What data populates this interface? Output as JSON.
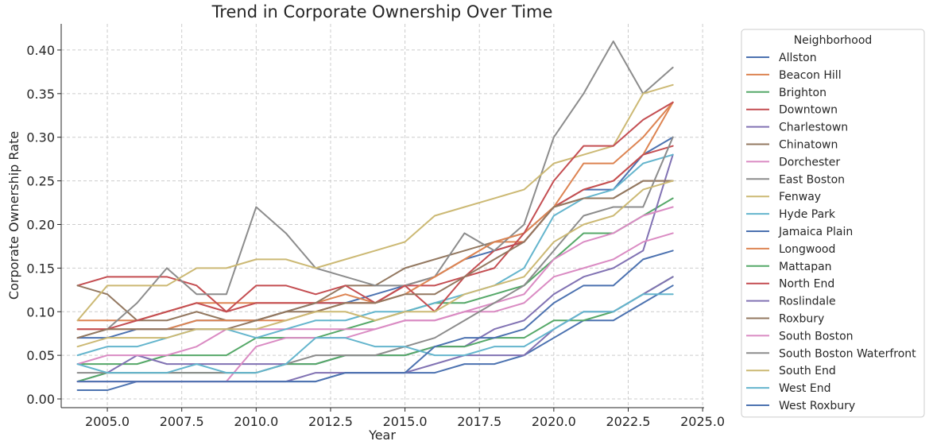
{
  "chart_data": {
    "type": "line",
    "title": "Trend in Corporate Ownership Over Time",
    "xlabel": "Year",
    "ylabel": "Corporate Ownership Rate",
    "xlim": [
      2003.45,
      2025.05
    ],
    "ylim": [
      -0.01,
      0.43
    ],
    "x_ticks": [
      2005.0,
      2007.5,
      2010.0,
      2012.5,
      2015.0,
      2017.5,
      2020.0,
      2022.5,
      2025.0
    ],
    "x_tick_labels": [
      "2005.0",
      "2007.5",
      "2010.0",
      "2012.5",
      "2015.0",
      "2017.5",
      "2020.0",
      "2022.5",
      "2025.0"
    ],
    "y_ticks": [
      0.0,
      0.05,
      0.1,
      0.15,
      0.2,
      0.25,
      0.3,
      0.35,
      0.4
    ],
    "y_tick_labels": [
      "0.00",
      "0.05",
      "0.10",
      "0.15",
      "0.20",
      "0.25",
      "0.30",
      "0.35",
      "0.40"
    ],
    "grid": true,
    "legend": {
      "title": "Neighborhood",
      "placement": "outside-right"
    },
    "x": [
      2004,
      2005,
      2006,
      2007,
      2008,
      2009,
      2010,
      2011,
      2012,
      2013,
      2014,
      2015,
      2016,
      2017,
      2018,
      2019,
      2020,
      2021,
      2022,
      2023,
      2024
    ],
    "series": [
      {
        "name": "Allston",
        "color": "#4c72b0",
        "values": [
          0.07,
          0.07,
          0.08,
          0.08,
          0.09,
          0.09,
          0.09,
          0.1,
          0.11,
          0.11,
          0.12,
          0.13,
          0.14,
          0.16,
          0.17,
          0.18,
          0.22,
          0.24,
          0.24,
          0.28,
          0.3
        ]
      },
      {
        "name": "Beacon Hill",
        "color": "#dd8452",
        "values": [
          0.09,
          0.09,
          0.09,
          0.1,
          0.11,
          0.11,
          0.11,
          0.11,
          0.11,
          0.12,
          0.11,
          0.13,
          0.14,
          0.16,
          0.18,
          0.18,
          0.22,
          0.24,
          0.25,
          0.28,
          0.34
        ]
      },
      {
        "name": "Brighton",
        "color": "#55a868",
        "values": [
          0.04,
          0.04,
          0.04,
          0.05,
          0.05,
          0.05,
          0.07,
          0.07,
          0.07,
          0.08,
          0.09,
          0.1,
          0.11,
          0.11,
          0.12,
          0.13,
          0.16,
          0.19,
          0.19,
          0.21,
          0.23
        ]
      },
      {
        "name": "Downtown",
        "color": "#c44e52",
        "values": [
          0.13,
          0.14,
          0.14,
          0.14,
          0.13,
          0.1,
          0.11,
          0.11,
          0.11,
          0.11,
          0.11,
          0.13,
          0.13,
          0.14,
          0.17,
          0.18,
          0.22,
          0.24,
          0.25,
          0.28,
          0.29
        ]
      },
      {
        "name": "Charlestown",
        "color": "#8172b3",
        "values": [
          0.02,
          0.03,
          0.05,
          0.04,
          0.04,
          0.04,
          0.04,
          0.04,
          0.04,
          0.05,
          0.05,
          0.05,
          0.06,
          0.06,
          0.08,
          0.09,
          0.12,
          0.14,
          0.15,
          0.17,
          0.28
        ]
      },
      {
        "name": "Chinatown",
        "color": "#937860",
        "values": [
          0.13,
          0.12,
          0.09,
          0.09,
          0.1,
          0.09,
          0.09,
          0.1,
          0.11,
          0.13,
          0.13,
          0.15,
          0.16,
          0.17,
          0.18,
          0.19,
          0.22,
          0.23,
          0.23,
          0.25,
          0.25
        ]
      },
      {
        "name": "Dorchester",
        "color": "#da8bc3",
        "values": [
          0.04,
          0.05,
          0.05,
          0.05,
          0.06,
          0.08,
          0.08,
          0.08,
          0.08,
          0.08,
          0.08,
          0.09,
          0.09,
          0.1,
          0.11,
          0.12,
          0.16,
          0.18,
          0.19,
          0.21,
          0.22
        ]
      },
      {
        "name": "East Boston",
        "color": "#8c8c8c",
        "values": [
          0.07,
          0.08,
          0.11,
          0.15,
          0.12,
          0.12,
          0.22,
          0.19,
          0.15,
          0.14,
          0.13,
          0.13,
          0.14,
          0.19,
          0.17,
          0.2,
          0.3,
          0.35,
          0.41,
          0.35,
          0.38
        ]
      },
      {
        "name": "Fenway",
        "color": "#ccb974",
        "values": [
          0.09,
          0.13,
          0.13,
          0.13,
          0.15,
          0.15,
          0.16,
          0.16,
          0.15,
          0.16,
          0.17,
          0.18,
          0.21,
          0.22,
          0.23,
          0.24,
          0.27,
          0.28,
          0.29,
          0.35,
          0.36
        ]
      },
      {
        "name": "Hyde Park",
        "color": "#64b5cd",
        "values": [
          0.05,
          0.06,
          0.06,
          0.07,
          0.08,
          0.08,
          0.07,
          0.08,
          0.09,
          0.09,
          0.1,
          0.1,
          0.11,
          0.12,
          0.13,
          0.15,
          0.21,
          0.23,
          0.24,
          0.27,
          0.28
        ]
      },
      {
        "name": "Jamaica Plain",
        "color": "#4c72b0",
        "values": [
          0.01,
          0.01,
          0.02,
          0.02,
          0.02,
          0.02,
          0.02,
          0.02,
          0.02,
          0.03,
          0.03,
          0.03,
          0.03,
          0.04,
          0.04,
          0.05,
          0.07,
          0.09,
          0.09,
          0.11,
          0.13
        ]
      },
      {
        "name": "Longwood",
        "color": "#dd8452",
        "values": [
          0.08,
          0.08,
          0.08,
          0.08,
          0.09,
          0.09,
          0.09,
          0.09,
          0.1,
          0.11,
          0.11,
          0.12,
          0.14,
          0.16,
          0.18,
          0.19,
          0.22,
          0.27,
          0.27,
          0.3,
          0.34
        ]
      },
      {
        "name": "Mattapan",
        "color": "#55a868",
        "values": [
          0.02,
          0.03,
          0.03,
          0.03,
          0.03,
          0.03,
          0.03,
          0.04,
          0.04,
          0.05,
          0.05,
          0.05,
          0.06,
          0.06,
          0.07,
          0.07,
          0.09,
          0.09,
          0.1,
          0.12,
          0.14
        ]
      },
      {
        "name": "North End",
        "color": "#c44e52",
        "values": [
          0.08,
          0.08,
          0.09,
          0.1,
          0.11,
          0.1,
          0.13,
          0.13,
          0.12,
          0.13,
          0.11,
          0.13,
          0.1,
          0.14,
          0.15,
          0.19,
          0.25,
          0.29,
          0.29,
          0.32,
          0.34
        ]
      },
      {
        "name": "Roslindale",
        "color": "#8172b3",
        "values": [
          0.02,
          0.02,
          0.02,
          0.02,
          0.02,
          0.02,
          0.02,
          0.02,
          0.03,
          0.03,
          0.03,
          0.03,
          0.04,
          0.05,
          0.05,
          0.05,
          0.08,
          0.1,
          0.1,
          0.12,
          0.14
        ]
      },
      {
        "name": "Roxbury",
        "color": "#937860",
        "values": [
          0.07,
          0.08,
          0.08,
          0.08,
          0.08,
          0.08,
          0.09,
          0.1,
          0.1,
          0.11,
          0.11,
          0.12,
          0.12,
          0.14,
          0.16,
          0.18,
          0.22,
          0.23,
          0.23,
          0.25,
          0.25
        ]
      },
      {
        "name": "South Boston",
        "color": "#da8bc3",
        "values": [
          0.02,
          0.02,
          0.02,
          0.02,
          0.02,
          0.02,
          0.06,
          0.07,
          0.07,
          0.07,
          0.08,
          0.09,
          0.09,
          0.1,
          0.1,
          0.11,
          0.14,
          0.15,
          0.16,
          0.18,
          0.19
        ]
      },
      {
        "name": "South Boston Waterfront",
        "color": "#8c8c8c",
        "values": [
          0.03,
          0.03,
          0.03,
          0.03,
          0.03,
          0.03,
          0.03,
          0.04,
          0.05,
          0.05,
          0.05,
          0.06,
          0.07,
          0.09,
          0.11,
          0.13,
          0.17,
          0.21,
          0.22,
          0.22,
          0.3
        ]
      },
      {
        "name": "South End",
        "color": "#ccb974",
        "values": [
          0.06,
          0.07,
          0.07,
          0.07,
          0.08,
          0.08,
          0.08,
          0.09,
          0.1,
          0.1,
          0.09,
          0.1,
          0.1,
          0.12,
          0.13,
          0.14,
          0.18,
          0.2,
          0.21,
          0.24,
          0.25
        ]
      },
      {
        "name": "West End",
        "color": "#64b5cd",
        "values": [
          0.04,
          0.03,
          0.03,
          0.03,
          0.04,
          0.03,
          0.03,
          0.04,
          0.07,
          0.07,
          0.06,
          0.06,
          0.05,
          0.05,
          0.06,
          0.06,
          0.08,
          0.1,
          0.1,
          0.12,
          0.12
        ]
      },
      {
        "name": "West Roxbury",
        "color": "#4c72b0",
        "values": [
          0.02,
          0.02,
          0.02,
          0.02,
          0.02,
          0.02,
          0.02,
          0.02,
          0.02,
          0.03,
          0.03,
          0.03,
          0.06,
          0.07,
          0.07,
          0.08,
          0.11,
          0.13,
          0.13,
          0.16,
          0.17
        ]
      }
    ]
  }
}
